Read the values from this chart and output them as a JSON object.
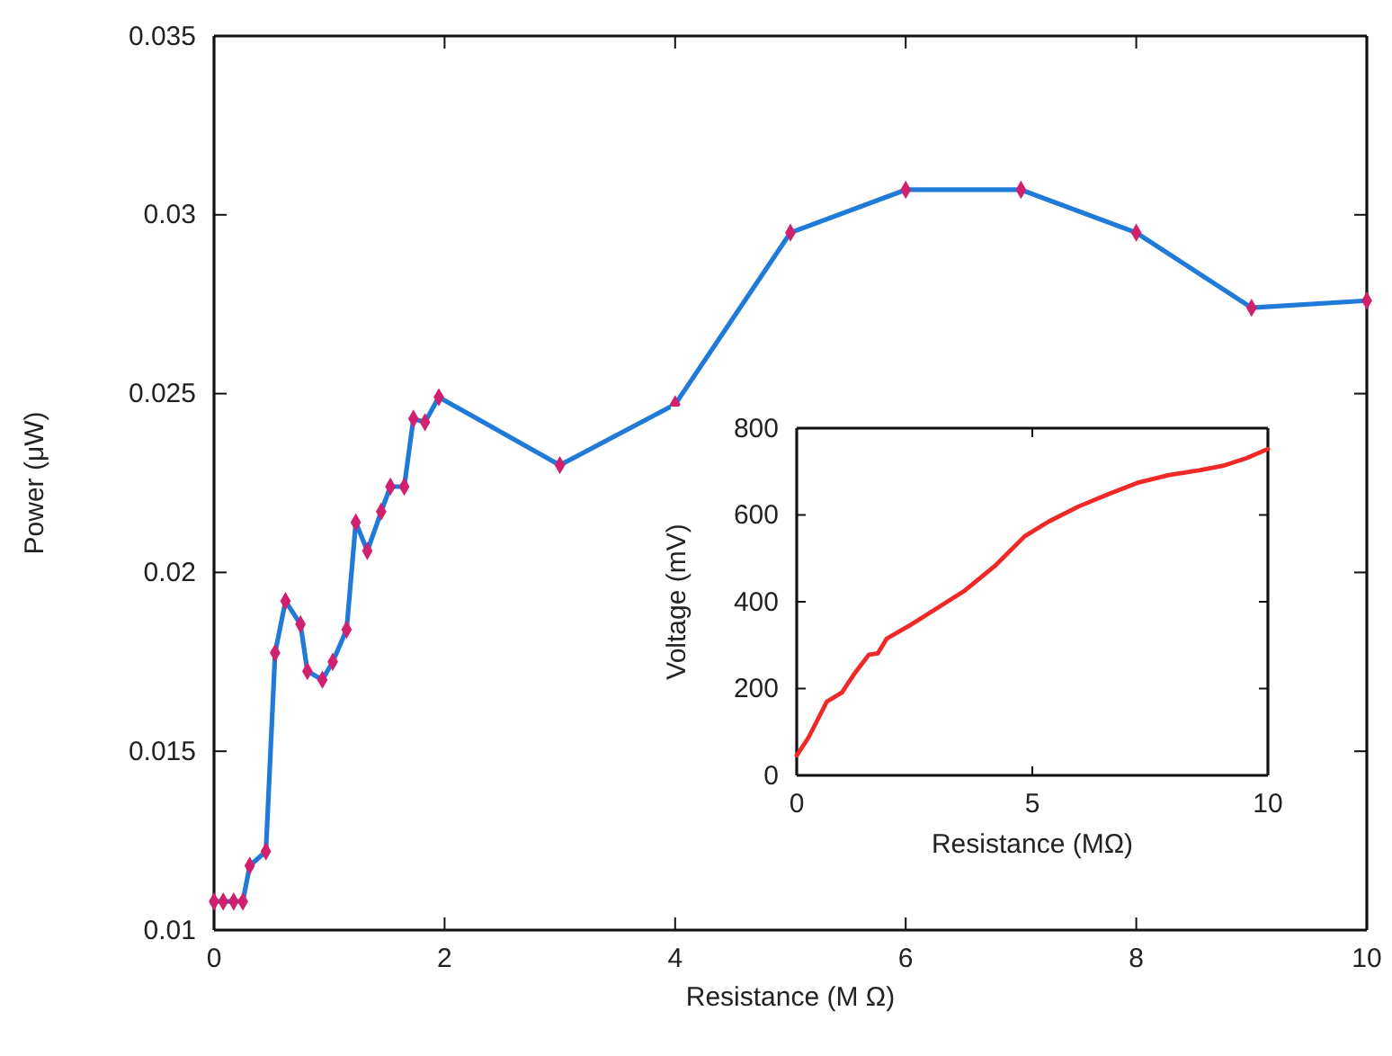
{
  "chart_data": [
    {
      "type": "line",
      "xlabel": "Resistance (M Ω)",
      "ylabel": "Power (μW)",
      "xlim": [
        0,
        10
      ],
      "ylim": [
        0.01,
        0.035
      ],
      "xticks": [
        0,
        2,
        4,
        6,
        8,
        10
      ],
      "yticks": [
        0.01,
        0.015,
        0.02,
        0.025,
        0.03,
        0.035
      ],
      "marker": "diamond",
      "line_style": "solid",
      "series": [
        {
          "color": "#1f7ad8",
          "x": [
            0,
            0.08,
            0.17,
            0.25,
            0.31,
            0.45,
            0.53,
            0.62,
            0.75,
            0.81,
            0.94,
            1.03,
            1.15,
            1.23,
            1.33,
            1.45,
            1.53,
            1.65,
            1.73,
            1.83,
            1.95,
            3,
            4,
            5,
            6,
            7,
            8,
            9,
            10
          ],
          "values": [
            0.0108,
            0.0108,
            0.0108,
            0.0108,
            0.0118,
            0.0122,
            0.01775,
            0.0192,
            0.01855,
            0.01724,
            0.017,
            0.0175,
            0.0184,
            0.0214,
            0.0206,
            0.0217,
            0.0224,
            0.0224,
            0.0243,
            0.0242,
            0.0249,
            0.023,
            0.0247,
            0.0295,
            0.0307,
            0.0307,
            0.0295,
            0.0274,
            0.0276
          ],
          "colors": [
            "#d0206e",
            "#d0206e",
            "#d0206e",
            "#d0206e",
            "#d0206e",
            "#d0206e",
            "#d0206e",
            "#d0206e",
            "#d0206e",
            "#d0206e",
            "#d0206e",
            "#d0206e",
            "#d0206e",
            "#d0206e",
            "#d0206e",
            "#d0206e",
            "#d0206e",
            "#d0206e",
            "#d0206e",
            "#d0206e",
            "#d0206e",
            "#d0206e",
            "#d0206e",
            "#d0206e",
            "#d0206e",
            "#d0206e",
            "#d0206e",
            "#d0206e",
            "#d0206e"
          ]
        }
      ]
    },
    {
      "type": "line",
      "xlabel": "Resistance (MΩ)",
      "ylabel": "Voltage (mV)",
      "xlim": [
        0,
        10
      ],
      "ylim": [
        0,
        800
      ],
      "xticks": [
        0,
        5,
        10
      ],
      "yticks": [
        0,
        200,
        400,
        600,
        800
      ],
      "marker": "none",
      "line_style": "solid",
      "series": [
        {
          "color": "#f02828",
          "x": [
            0,
            0.25,
            0.64,
            0.96,
            1.21,
            1.53,
            1.72,
            1.91,
            2.42,
            2.93,
            3.57,
            4.2,
            4.84,
            5.35,
            5.99,
            6.62,
            7.26,
            7.9,
            8.54,
            9.04,
            9.55,
            10
          ],
          "values": [
            46,
            87,
            170,
            191,
            232,
            278,
            281,
            315,
            347,
            382,
            426,
            482,
            551,
            585,
            620,
            648,
            675,
            692,
            703,
            713,
            731,
            752
          ]
        }
      ]
    }
  ]
}
